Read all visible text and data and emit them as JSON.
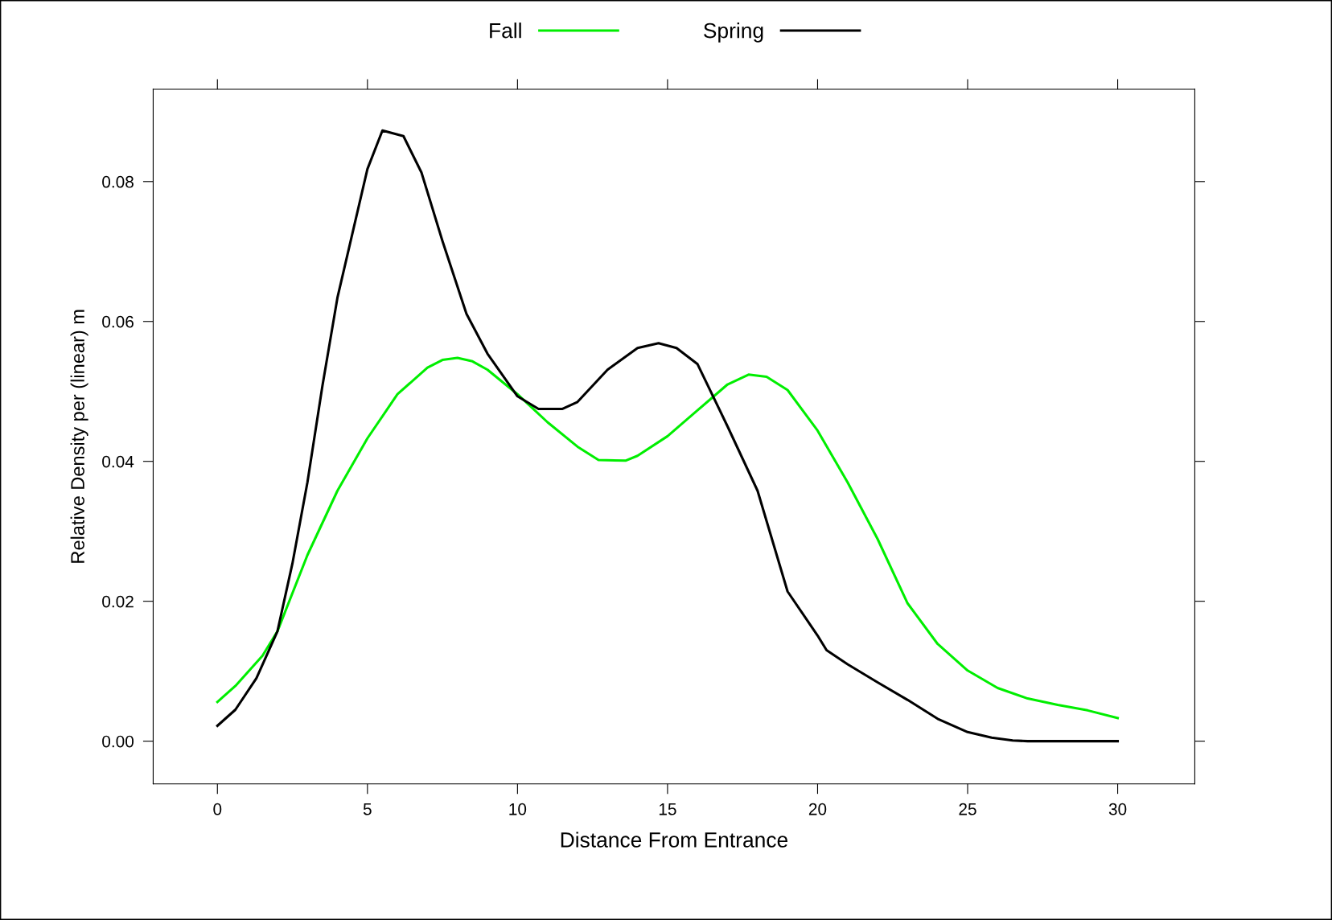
{
  "chart_data": {
    "type": "line",
    "xlabel": "Distance From Entrance",
    "ylabel": "Relative Density per (linear) m",
    "xlim": [
      -2.14,
      32.57
    ],
    "ylim": [
      -0.0061,
      0.0932
    ],
    "xticks": [
      0,
      5,
      10,
      15,
      20,
      25,
      30
    ],
    "yticks": [
      {
        "value": 0,
        "label": "0.00"
      },
      {
        "value": 0.02,
        "label": "0.02"
      },
      {
        "value": 0.04,
        "label": "0.04"
      },
      {
        "value": 0.06,
        "label": "0.06"
      },
      {
        "value": 0.08,
        "label": "0.08"
      }
    ],
    "legend": "top",
    "grid": false,
    "line_style": "solid",
    "marker": "none",
    "series": [
      {
        "name": "Fall",
        "color": "#00ee00",
        "x": [
          0,
          0.6,
          1.5,
          2,
          3,
          4,
          5,
          6,
          7,
          7.5,
          8,
          8.5,
          9,
          10,
          11,
          12,
          12.7,
          13.6,
          14,
          15,
          16,
          17,
          17.7,
          18.3,
          19,
          20,
          21,
          22,
          23,
          24,
          25,
          26,
          27,
          28,
          29,
          30
        ],
        "values": [
          0.0056,
          0.0079,
          0.0122,
          0.0157,
          0.0266,
          0.0358,
          0.0433,
          0.0496,
          0.0534,
          0.0545,
          0.0548,
          0.0543,
          0.0531,
          0.0496,
          0.0456,
          0.0421,
          0.0402,
          0.0401,
          0.0408,
          0.0436,
          0.0473,
          0.051,
          0.0524,
          0.0521,
          0.0502,
          0.0444,
          0.037,
          0.0289,
          0.0197,
          0.0139,
          0.0101,
          0.0076,
          0.0061,
          0.0052,
          0.0044,
          0.0033
        ]
      },
      {
        "name": "Spring",
        "color": "#000000",
        "x": [
          0,
          0.6,
          1.3,
          2,
          2.5,
          3,
          3.5,
          4,
          4.5,
          5,
          5.5,
          6.2,
          6.8,
          7.5,
          8.3,
          9,
          10,
          10.7,
          11.5,
          12,
          13,
          14,
          14.7,
          15.3,
          16,
          17,
          18,
          19,
          20,
          20.3,
          21,
          22,
          23,
          24,
          25,
          25.8,
          26.5,
          27,
          30
        ],
        "values": [
          0.0022,
          0.0045,
          0.009,
          0.0157,
          0.0254,
          0.037,
          0.0508,
          0.0634,
          0.0726,
          0.0818,
          0.0873,
          0.0865,
          0.0813,
          0.0715,
          0.0611,
          0.0554,
          0.0493,
          0.0475,
          0.0475,
          0.0485,
          0.0531,
          0.0562,
          0.0569,
          0.0562,
          0.0539,
          0.045,
          0.0358,
          0.0214,
          0.0151,
          0.013,
          0.011,
          0.0084,
          0.0059,
          0.0032,
          0.0013,
          0.0005,
          0.0001,
          0,
          0
        ]
      }
    ]
  }
}
